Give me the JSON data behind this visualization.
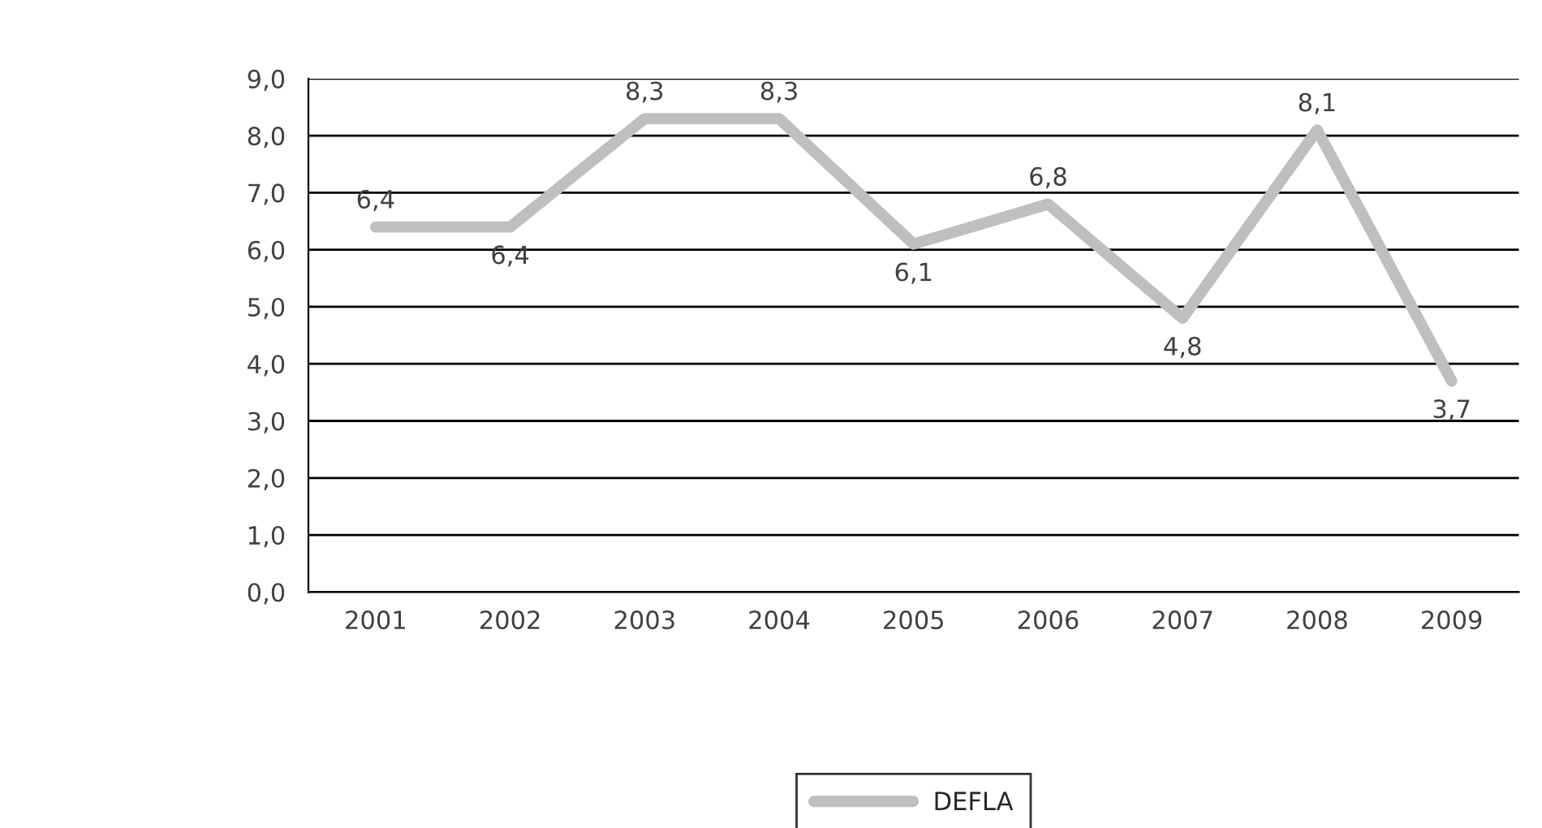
{
  "chart_data": {
    "type": "line",
    "categories": [
      "2001",
      "2002",
      "2003",
      "2004",
      "2005",
      "2006",
      "2007",
      "2008",
      "2009"
    ],
    "series": [
      {
        "name": "DEFLA",
        "color": "#bfbfbf",
        "values": [
          6.4,
          6.4,
          8.3,
          8.3,
          6.1,
          6.8,
          4.8,
          8.1,
          3.7
        ],
        "value_labels": [
          "6,4",
          "6,4",
          "8,3",
          "8,3",
          "6,1",
          "6,8",
          "4,8",
          "8,1",
          "3,7"
        ]
      }
    ],
    "ylim": [
      0,
      9
    ],
    "yticks": [
      {
        "value": 0,
        "label": "0,0"
      },
      {
        "value": 1,
        "label": "1,0"
      },
      {
        "value": 2,
        "label": "2,0"
      },
      {
        "value": 3,
        "label": "3,0"
      },
      {
        "value": 4,
        "label": "4,0"
      },
      {
        "value": 5,
        "label": "5,0"
      },
      {
        "value": 6,
        "label": "6,0"
      },
      {
        "value": 7,
        "label": "7,0"
      },
      {
        "value": 8,
        "label": "8,0"
      },
      {
        "value": 9,
        "label": "9,0"
      }
    ],
    "grid": "y",
    "legend": "bottom",
    "marker": "none",
    "line_style": "solid"
  }
}
